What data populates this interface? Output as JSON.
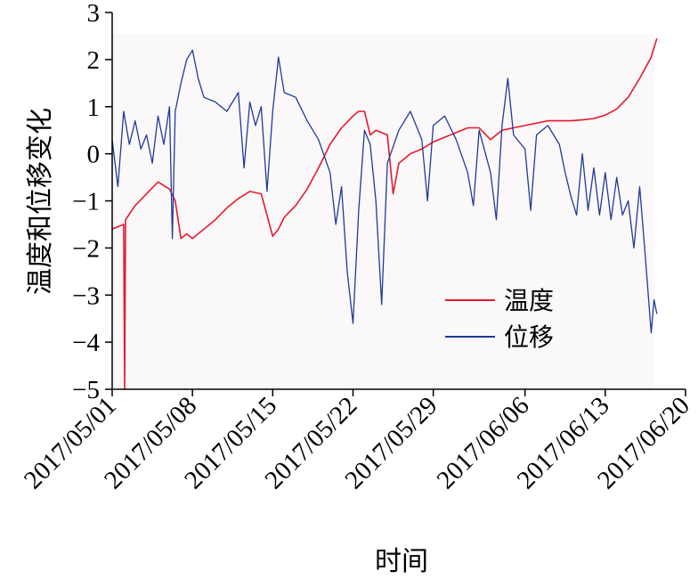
{
  "chart_data": {
    "type": "line",
    "xlabel": "时间",
    "ylabel": "温度和位移变化",
    "ylim": [
      -5,
      3
    ],
    "xlim": [
      "2017-05-01",
      "2017-06-20"
    ],
    "x_ticks": [
      "2017/05/01",
      "2017/05/08",
      "2017/05/15",
      "2017/05/22",
      "2017/05/29",
      "2017/06/06",
      "2017/06/13",
      "2017/06/20"
    ],
    "x_tick_dates": [
      "2017-05-01",
      "2017-05-08",
      "2017-05-15",
      "2017-05-22",
      "2017-05-29",
      "2017-06-06",
      "2017-06-13",
      "2017-06-20"
    ],
    "y_ticks": [
      "3",
      "2",
      "1",
      "0",
      "−1",
      "−2",
      "−3",
      "−4",
      "−5"
    ],
    "y_tick_values": [
      3,
      2,
      1,
      0,
      -1,
      -2,
      -3,
      -4,
      -5
    ],
    "legend_position": "right-center",
    "grid": false,
    "series": [
      {
        "name": "温度",
        "color": "#e8192c",
        "points": [
          [
            "2017-05-01",
            -1.6
          ],
          [
            "2017-05-01T12:00",
            -1.55
          ],
          [
            "2017-05-02",
            -1.5
          ],
          [
            "2017-05-02T02:00",
            -5.0
          ],
          [
            "2017-05-02T04:00",
            -1.4
          ],
          [
            "2017-05-03",
            -1.1
          ],
          [
            "2017-05-04",
            -0.85
          ],
          [
            "2017-05-05",
            -0.6
          ],
          [
            "2017-05-06",
            -0.75
          ],
          [
            "2017-05-06T12:00",
            -1.0
          ],
          [
            "2017-05-07",
            -1.8
          ],
          [
            "2017-05-07T12:00",
            -1.7
          ],
          [
            "2017-05-08",
            -1.8
          ],
          [
            "2017-05-09",
            -1.6
          ],
          [
            "2017-05-10",
            -1.4
          ],
          [
            "2017-05-11",
            -1.15
          ],
          [
            "2017-05-12",
            -0.95
          ],
          [
            "2017-05-13",
            -0.8
          ],
          [
            "2017-05-14",
            -0.85
          ],
          [
            "2017-05-15",
            -1.75
          ],
          [
            "2017-05-15T12:00",
            -1.6
          ],
          [
            "2017-05-16",
            -1.35
          ],
          [
            "2017-05-17",
            -1.1
          ],
          [
            "2017-05-18",
            -0.75
          ],
          [
            "2017-05-19",
            -0.3
          ],
          [
            "2017-05-20",
            0.2
          ],
          [
            "2017-05-21",
            0.55
          ],
          [
            "2017-05-22",
            0.8
          ],
          [
            "2017-05-22T12:00",
            0.9
          ],
          [
            "2017-05-23",
            0.9
          ],
          [
            "2017-05-23T12:00",
            0.4
          ],
          [
            "2017-05-24",
            0.5
          ],
          [
            "2017-05-25",
            0.4
          ],
          [
            "2017-05-25T12:00",
            -0.85
          ],
          [
            "2017-05-26",
            -0.2
          ],
          [
            "2017-05-27",
            0.0
          ],
          [
            "2017-05-28",
            0.1
          ],
          [
            "2017-05-29",
            0.25
          ],
          [
            "2017-05-30",
            0.35
          ],
          [
            "2017-05-31",
            0.45
          ],
          [
            "2017-06-01",
            0.55
          ],
          [
            "2017-06-02",
            0.55
          ],
          [
            "2017-06-03",
            0.3
          ],
          [
            "2017-06-04",
            0.5
          ],
          [
            "2017-06-05",
            0.55
          ],
          [
            "2017-06-06",
            0.6
          ],
          [
            "2017-06-07",
            0.65
          ],
          [
            "2017-06-08",
            0.7
          ],
          [
            "2017-06-09",
            0.7
          ],
          [
            "2017-06-10",
            0.7
          ],
          [
            "2017-06-11",
            0.72
          ],
          [
            "2017-06-12",
            0.75
          ],
          [
            "2017-06-13",
            0.82
          ],
          [
            "2017-06-14",
            0.95
          ],
          [
            "2017-06-15",
            1.2
          ],
          [
            "2017-06-16",
            1.6
          ],
          [
            "2017-06-17",
            2.05
          ],
          [
            "2017-06-17T12:00",
            2.45
          ]
        ]
      },
      {
        "name": "位移",
        "color": "#1f3a9a",
        "points": [
          [
            "2017-05-01",
            0.3
          ],
          [
            "2017-05-01T12:00",
            -0.7
          ],
          [
            "2017-05-02",
            0.9
          ],
          [
            "2017-05-02T12:00",
            0.2
          ],
          [
            "2017-05-03",
            0.7
          ],
          [
            "2017-05-03T12:00",
            0.1
          ],
          [
            "2017-05-04",
            0.4
          ],
          [
            "2017-05-04T12:00",
            -0.2
          ],
          [
            "2017-05-05",
            0.8
          ],
          [
            "2017-05-05T12:00",
            0.2
          ],
          [
            "2017-05-06",
            1.0
          ],
          [
            "2017-05-06T06:00",
            -1.8
          ],
          [
            "2017-05-06T12:00",
            0.9
          ],
          [
            "2017-05-07",
            1.5
          ],
          [
            "2017-05-07T12:00",
            2.0
          ],
          [
            "2017-05-08",
            2.2
          ],
          [
            "2017-05-08T12:00",
            1.6
          ],
          [
            "2017-05-09",
            1.2
          ],
          [
            "2017-05-10",
            1.1
          ],
          [
            "2017-05-11",
            0.9
          ],
          [
            "2017-05-12",
            1.3
          ],
          [
            "2017-05-12T12:00",
            -0.3
          ],
          [
            "2017-05-13",
            1.1
          ],
          [
            "2017-05-13T12:00",
            0.6
          ],
          [
            "2017-05-14",
            1.0
          ],
          [
            "2017-05-14T12:00",
            -0.8
          ],
          [
            "2017-05-15",
            0.9
          ],
          [
            "2017-05-15T12:00",
            2.05
          ],
          [
            "2017-05-16",
            1.3
          ],
          [
            "2017-05-17",
            1.2
          ],
          [
            "2017-05-18",
            0.7
          ],
          [
            "2017-05-19",
            0.3
          ],
          [
            "2017-05-20",
            -0.4
          ],
          [
            "2017-05-20T12:00",
            -1.5
          ],
          [
            "2017-05-21",
            -0.7
          ],
          [
            "2017-05-21T12:00",
            -2.5
          ],
          [
            "2017-05-22",
            -3.6
          ],
          [
            "2017-05-22T12:00",
            -1.2
          ],
          [
            "2017-05-23",
            0.5
          ],
          [
            "2017-05-23T12:00",
            0.2
          ],
          [
            "2017-05-24",
            -1.0
          ],
          [
            "2017-05-24T12:00",
            -3.2
          ],
          [
            "2017-05-25",
            -0.2
          ],
          [
            "2017-05-26",
            0.5
          ],
          [
            "2017-05-27",
            0.9
          ],
          [
            "2017-05-28",
            0.3
          ],
          [
            "2017-05-28T12:00",
            -1.0
          ],
          [
            "2017-05-29",
            0.6
          ],
          [
            "2017-05-30",
            0.8
          ],
          [
            "2017-05-31",
            0.3
          ],
          [
            "2017-06-01",
            -0.4
          ],
          [
            "2017-06-01T12:00",
            -1.1
          ],
          [
            "2017-06-02",
            0.5
          ],
          [
            "2017-06-03",
            -0.4
          ],
          [
            "2017-06-03T12:00",
            -1.4
          ],
          [
            "2017-06-04",
            0.6
          ],
          [
            "2017-06-04T12:00",
            1.6
          ],
          [
            "2017-06-05",
            0.4
          ],
          [
            "2017-06-06",
            0.1
          ],
          [
            "2017-06-06T12:00",
            -1.2
          ],
          [
            "2017-06-07",
            0.4
          ],
          [
            "2017-06-08",
            0.6
          ],
          [
            "2017-06-09",
            0.2
          ],
          [
            "2017-06-09T12:00",
            -0.4
          ],
          [
            "2017-06-10",
            -0.9
          ],
          [
            "2017-06-10T12:00",
            -1.3
          ],
          [
            "2017-06-11",
            0.0
          ],
          [
            "2017-06-11T12:00",
            -1.2
          ],
          [
            "2017-06-12",
            -0.3
          ],
          [
            "2017-06-12T12:00",
            -1.3
          ],
          [
            "2017-06-13",
            -0.4
          ],
          [
            "2017-06-13T12:00",
            -1.4
          ],
          [
            "2017-06-14",
            -0.5
          ],
          [
            "2017-06-14T12:00",
            -1.3
          ],
          [
            "2017-06-15",
            -1.0
          ],
          [
            "2017-06-15T12:00",
            -2.0
          ],
          [
            "2017-06-16",
            -0.7
          ],
          [
            "2017-06-16T12:00",
            -2.2
          ],
          [
            "2017-06-17",
            -3.8
          ],
          [
            "2017-06-17T06:00",
            -3.1
          ],
          [
            "2017-06-17T12:00",
            -3.4
          ]
        ]
      }
    ]
  }
}
